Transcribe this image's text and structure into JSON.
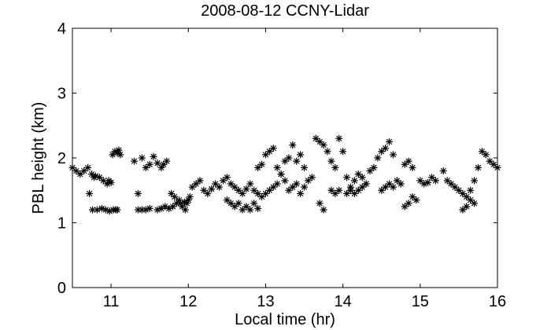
{
  "chart_data": {
    "type": "scatter",
    "title": "2008-08-12 CCNY-Lidar",
    "xlabel": "Local time (hr)",
    "ylabel": "PBL height (km)",
    "xlim": [
      10.5,
      16
    ],
    "ylim": [
      0,
      4
    ],
    "xticks": [
      11,
      12,
      13,
      14,
      15,
      16
    ],
    "yticks": [
      0,
      1,
      2,
      3,
      4
    ],
    "marker": "asterisk",
    "marker_color": "#000000",
    "grid": false,
    "series": [
      {
        "x": [
          10.5,
          10.55,
          10.6,
          10.65,
          10.7,
          10.72,
          10.75,
          10.78,
          10.8,
          10.85,
          10.9,
          10.95,
          10.97,
          11.0,
          11.02,
          11.05,
          11.08,
          11.1,
          11.12,
          10.76,
          10.82,
          10.88,
          10.93,
          10.98,
          11.03,
          11.06,
          11.08,
          11.3,
          11.35,
          11.4,
          11.45,
          11.5,
          11.55,
          11.6,
          11.65,
          11.68,
          11.72,
          11.75,
          11.8,
          11.85,
          11.9,
          11.95,
          12.0,
          12.02,
          11.35,
          11.4,
          11.45,
          11.5,
          11.6,
          11.65,
          11.7,
          11.78,
          11.82,
          11.88,
          11.92,
          11.96,
          11.98,
          12.05,
          12.1,
          12.15,
          12.2,
          12.25,
          12.3,
          12.35,
          12.4,
          12.45,
          12.5,
          12.55,
          12.6,
          12.65,
          12.7,
          12.75,
          12.8,
          12.85,
          12.9,
          12.95,
          12.5,
          12.55,
          12.6,
          12.65,
          12.7,
          12.75,
          12.8,
          12.85,
          12.9,
          13.0,
          13.05,
          13.1,
          13.15,
          13.2,
          13.25,
          13.3,
          13.35,
          13.4,
          13.45,
          13.5,
          13.55,
          13.6,
          12.9,
          12.95,
          13.0,
          13.05,
          13.1,
          13.15,
          13.2,
          13.25,
          13.3,
          13.35,
          13.4,
          13.45,
          13.5,
          13.65,
          13.7,
          13.75,
          13.8,
          13.85,
          13.9,
          13.95,
          14.0,
          13.7,
          13.75,
          13.85,
          13.9,
          13.95,
          14.05,
          14.1,
          14.15,
          14.2,
          14.25,
          14.3,
          14.05,
          14.1,
          14.15,
          14.2,
          14.25,
          14.3,
          14.35,
          14.4,
          14.45,
          14.5,
          14.55,
          14.6,
          14.65,
          14.5,
          14.55,
          14.6,
          14.65,
          14.7,
          14.75,
          14.8,
          14.85,
          14.9,
          14.8,
          14.85,
          14.9,
          14.95,
          15.0,
          15.05,
          15.1,
          15.15,
          15.2,
          15.3,
          15.35,
          15.4,
          15.45,
          15.5,
          15.55,
          15.6,
          15.65,
          15.7,
          15.55,
          15.6,
          15.65,
          15.7,
          15.75,
          15.8,
          15.85,
          15.9,
          15.95,
          16.0
        ],
        "y": [
          1.85,
          1.8,
          1.75,
          1.8,
          1.85,
          1.45,
          1.75,
          1.7,
          1.72,
          1.7,
          1.65,
          1.6,
          1.65,
          1.62,
          2.05,
          2.1,
          2.08,
          2.12,
          2.05,
          1.2,
          1.2,
          1.22,
          1.2,
          1.18,
          1.2,
          1.2,
          1.2,
          1.95,
          1.45,
          2.0,
          1.85,
          1.9,
          2.02,
          1.92,
          1.85,
          1.9,
          1.95,
          1.22,
          1.25,
          1.3,
          1.3,
          1.32,
          1.35,
          1.4,
          1.2,
          1.2,
          1.2,
          1.22,
          1.2,
          1.22,
          1.25,
          1.45,
          1.4,
          1.35,
          1.25,
          1.2,
          1.3,
          1.55,
          1.6,
          1.65,
          1.5,
          1.45,
          1.52,
          1.6,
          1.55,
          1.65,
          1.7,
          1.6,
          1.55,
          1.5,
          1.45,
          1.52,
          1.6,
          1.5,
          1.45,
          1.4,
          1.35,
          1.3,
          1.25,
          1.3,
          1.2,
          1.25,
          1.2,
          1.3,
          1.22,
          1.45,
          1.5,
          1.55,
          1.6,
          1.75,
          1.65,
          1.5,
          1.55,
          1.6,
          1.45,
          1.55,
          1.65,
          1.7,
          1.85,
          1.9,
          2.05,
          2.1,
          2.15,
          1.85,
          1.75,
          1.95,
          2.0,
          2.2,
          1.95,
          2.05,
          1.85,
          2.3,
          2.25,
          2.2,
          2.1,
          1.95,
          1.85,
          2.3,
          2.1,
          1.3,
          1.2,
          1.5,
          1.45,
          1.5,
          1.7,
          1.55,
          1.65,
          1.75,
          1.7,
          1.6,
          1.45,
          1.5,
          1.45,
          1.5,
          1.55,
          1.6,
          1.8,
          1.85,
          2.0,
          2.1,
          2.15,
          2.25,
          2.05,
          1.5,
          1.55,
          1.6,
          1.55,
          1.65,
          1.6,
          1.9,
          1.95,
          1.85,
          1.25,
          1.3,
          1.4,
          1.35,
          1.65,
          1.6,
          1.62,
          1.7,
          1.65,
          1.8,
          1.65,
          1.6,
          1.55,
          1.5,
          1.45,
          1.4,
          1.35,
          1.3,
          1.2,
          1.25,
          1.5,
          1.65,
          1.85,
          2.1,
          2.05,
          1.95,
          1.9,
          1.85
        ]
      }
    ]
  }
}
